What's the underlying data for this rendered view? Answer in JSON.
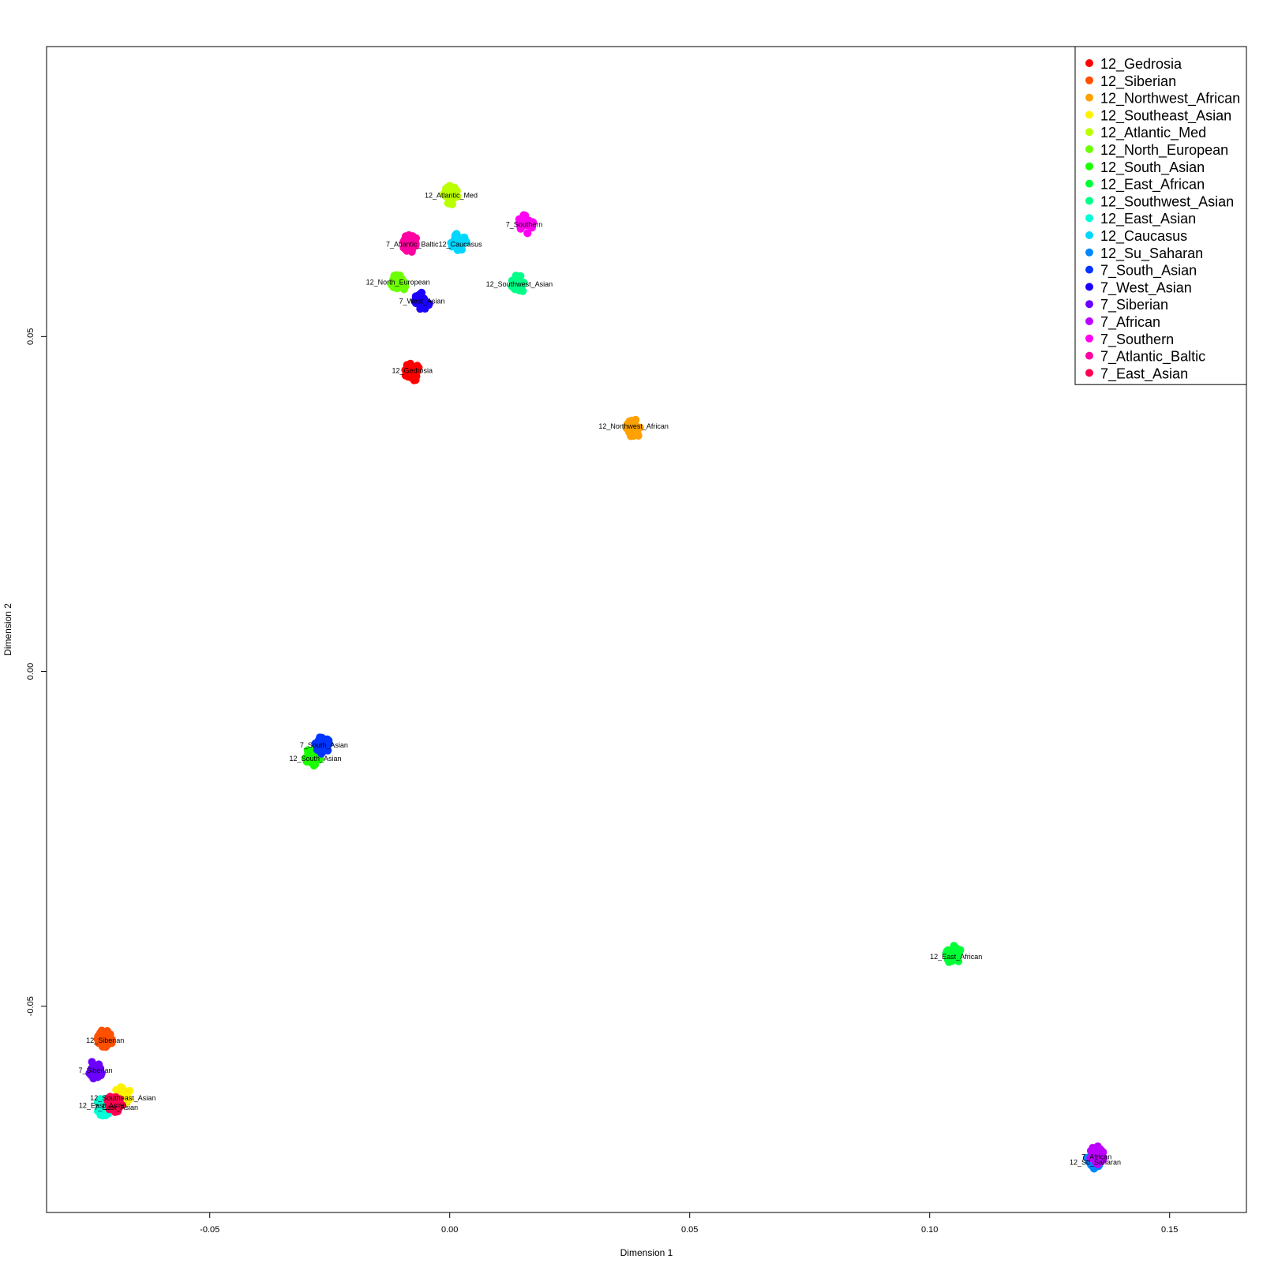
{
  "chart_data": {
    "type": "scatter",
    "xlabel": "Dimension 1",
    "ylabel": "Dimension 2",
    "xlim": [
      -0.084,
      0.166
    ],
    "ylim": [
      -0.0808,
      0.0933
    ],
    "x_ticks": [
      {
        "value": -0.05,
        "label": "-0.05"
      },
      {
        "value": 0.0,
        "label": "0.00"
      },
      {
        "value": 0.05,
        "label": "0.05"
      },
      {
        "value": 0.1,
        "label": "0.10"
      },
      {
        "value": 0.15,
        "label": "0.15"
      }
    ],
    "y_ticks": [
      {
        "value": -0.05,
        "label": "-0.05"
      },
      {
        "value": 0.0,
        "label": "0.00"
      },
      {
        "value": 0.05,
        "label": "0.05"
      }
    ],
    "legend_position": "top-right",
    "series": [
      {
        "name": "12_Gedrosia",
        "color": "#FF0000",
        "cx": -0.0078,
        "cy": 0.0447
      },
      {
        "name": "12_Siberian",
        "color": "#FF5000",
        "cx": -0.0718,
        "cy": -0.0548
      },
      {
        "name": "12_Northwest_African",
        "color": "#FFA100",
        "cx": 0.0383,
        "cy": 0.0362
      },
      {
        "name": "12_Southeast_Asian",
        "color": "#FFF200",
        "cx": -0.0681,
        "cy": -0.0632
      },
      {
        "name": "12_Atlantic_Med",
        "color": "#BCFF00",
        "cx": 0.0003,
        "cy": 0.0711
      },
      {
        "name": "12_North_European",
        "color": "#6BFF00",
        "cx": -0.0108,
        "cy": 0.0579
      },
      {
        "name": "12_South_Asian",
        "color": "#1AFF00",
        "cx": -0.0285,
        "cy": -0.0128
      },
      {
        "name": "12_East_African",
        "color": "#00FF36",
        "cx": 0.105,
        "cy": -0.0423
      },
      {
        "name": "12_Southwest_Asian",
        "color": "#00FF87",
        "cx": 0.0143,
        "cy": 0.0578
      },
      {
        "name": "12_East_Asian",
        "color": "#00FFD7",
        "cx": -0.072,
        "cy": -0.065
      },
      {
        "name": "12_Caucasus",
        "color": "#00D7FF",
        "cx": 0.0019,
        "cy": 0.064
      },
      {
        "name": "12_Su_Saharan",
        "color": "#0087FF",
        "cx": 0.1343,
        "cy": -0.073
      },
      {
        "name": "7_South_Asian",
        "color": "#0036FF",
        "cx": -0.0265,
        "cy": -0.011
      },
      {
        "name": "7_West_Asian",
        "color": "#1A00FF",
        "cx": -0.0058,
        "cy": 0.0552
      },
      {
        "name": "7_Siberian",
        "color": "#6B00FF",
        "cx": -0.0738,
        "cy": -0.0595
      },
      {
        "name": "7_African",
        "color": "#BC00FF",
        "cx": 0.1348,
        "cy": -0.0723
      },
      {
        "name": "7_Southern",
        "color": "#FF00F2",
        "cx": 0.0158,
        "cy": 0.0668
      },
      {
        "name": "7_Atlantic_Baltic",
        "color": "#FF00A1",
        "cx": -0.0083,
        "cy": 0.064
      },
      {
        "name": "7_East_Asian",
        "color": "#FF0050",
        "cx": -0.0698,
        "cy": -0.0645
      }
    ],
    "annotations": [
      {
        "text": "12_Gedrosia",
        "x": -0.0078,
        "y": 0.0449
      },
      {
        "text": "12_Siberian",
        "x": -0.0718,
        "y": -0.0551
      },
      {
        "text": "12_Northwest_African",
        "x": 0.0383,
        "y": 0.0366
      },
      {
        "text": "12_Southeast_Asian",
        "x": -0.0681,
        "y": -0.0637
      },
      {
        "text": "12_Atlantic_Med",
        "x": 0.0003,
        "y": 0.0711
      },
      {
        "text": "12_North_European",
        "x": -0.0108,
        "y": 0.0581
      },
      {
        "text": "12_South_Asian",
        "x": -0.028,
        "y": -0.013
      },
      {
        "text": "12_East_African",
        "x": 0.1055,
        "y": -0.0426
      },
      {
        "text": "12_Southwest_Asian",
        "x": 0.0145,
        "y": 0.0578
      },
      {
        "text": "12_East_Asian",
        "x": -0.0723,
        "y": -0.0648
      },
      {
        "text": "12_Caucasus",
        "x": 0.0022,
        "y": 0.0638
      },
      {
        "text": "12_Su_Saharan",
        "x": 0.1345,
        "y": -0.0733
      },
      {
        "text": "7_South_Asian",
        "x": -0.0262,
        "y": -0.011
      },
      {
        "text": "7_West_Asian",
        "x": -0.0058,
        "y": 0.0553
      },
      {
        "text": "7_Siberian",
        "x": -0.0738,
        "y": -0.0596
      },
      {
        "text": "7_African",
        "x": 0.1348,
        "y": -0.0725
      },
      {
        "text": "7_Southern",
        "x": 0.0155,
        "y": 0.0667
      },
      {
        "text": "7_Atlantic_Baltic",
        "x": -0.0078,
        "y": 0.0638
      },
      {
        "text": "7_East_Asian",
        "x": -0.0695,
        "y": -0.0651
      }
    ]
  }
}
